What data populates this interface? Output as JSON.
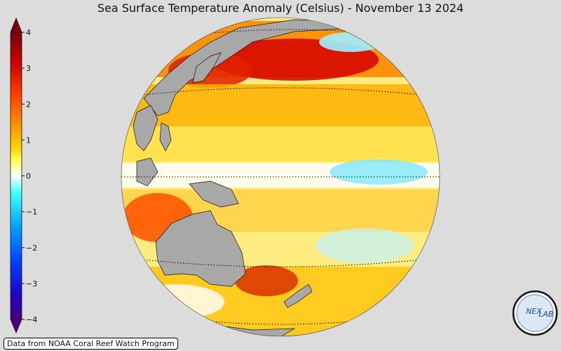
{
  "title": "Sea Surface Temperature Anomaly (Celsius) - November 13 2024",
  "colorbar": {
    "ticks": [
      "4",
      "3",
      "2",
      "1",
      "0",
      "−1",
      "−2",
      "−3",
      "−4"
    ],
    "colors": [
      "#7a0010",
      "#c80000",
      "#ff4000",
      "#ff9000",
      "#ffd000",
      "#ffff40",
      "#ffffff",
      "#40ffff",
      "#00a0ff",
      "#0040ff",
      "#2000c0",
      "#4b0082"
    ]
  },
  "map": {
    "projection": "orthographic",
    "center": "Western Pacific Ocean",
    "graticule": "dotted"
  },
  "credit": "Data from NOAA Coral Reef Watch Program",
  "logo": {
    "text_left": "NEX",
    "text_right": "LAB"
  }
}
